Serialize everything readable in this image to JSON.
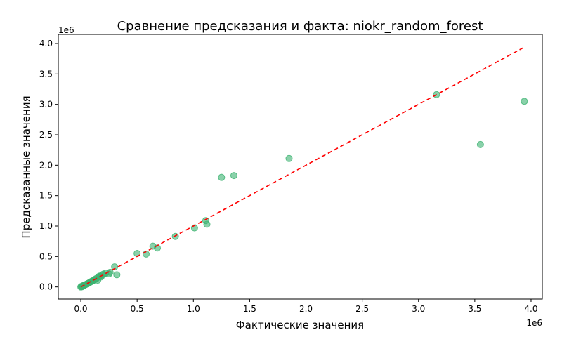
{
  "chart_data": {
    "type": "scatter",
    "title": "Сравнение предсказания и факта: niokr_random_forest",
    "xlabel": "Фактические значения",
    "ylabel": "Предсказанные значения",
    "x_offset_label": "1e6",
    "y_offset_label": "1e6",
    "xlim": [
      -200000,
      4100000
    ],
    "ylim": [
      -200000,
      4150000
    ],
    "x_ticks": [
      0,
      500000,
      1000000,
      1500000,
      2000000,
      2500000,
      3000000,
      3500000,
      4000000
    ],
    "x_tick_labels": [
      "0.0",
      "0.5",
      "1.0",
      "1.5",
      "2.0",
      "2.5",
      "3.0",
      "3.5",
      "4.0"
    ],
    "y_ticks": [
      0,
      500000,
      1000000,
      1500000,
      2000000,
      2500000,
      3000000,
      3500000,
      4000000
    ],
    "y_tick_labels": [
      "0.0",
      "0.5",
      "1.0",
      "1.5",
      "2.0",
      "2.5",
      "3.0",
      "3.5",
      "4.0"
    ],
    "grid": false,
    "point_color": "#3cb371",
    "point_opacity": 0.6,
    "reference_line": {
      "style": "dashed",
      "color": "#ff0000",
      "from": [
        0,
        0
      ],
      "to": [
        3950000,
        3950000
      ]
    },
    "points": [
      {
        "x": 0,
        "y": 0
      },
      {
        "x": 5000,
        "y": 8000
      },
      {
        "x": 10000,
        "y": 3000
      },
      {
        "x": 15000,
        "y": 12000
      },
      {
        "x": 20000,
        "y": 20000
      },
      {
        "x": 25000,
        "y": 18000
      },
      {
        "x": 30000,
        "y": 28000
      },
      {
        "x": 40000,
        "y": 35000
      },
      {
        "x": 50000,
        "y": 45000
      },
      {
        "x": 60000,
        "y": 55000
      },
      {
        "x": 70000,
        "y": 62000
      },
      {
        "x": 80000,
        "y": 75000
      },
      {
        "x": 90000,
        "y": 85000
      },
      {
        "x": 100000,
        "y": 95000
      },
      {
        "x": 110000,
        "y": 105000
      },
      {
        "x": 120000,
        "y": 115000
      },
      {
        "x": 130000,
        "y": 130000
      },
      {
        "x": 140000,
        "y": 140000
      },
      {
        "x": 150000,
        "y": 110000
      },
      {
        "x": 160000,
        "y": 170000
      },
      {
        "x": 170000,
        "y": 180000
      },
      {
        "x": 180000,
        "y": 165000
      },
      {
        "x": 190000,
        "y": 195000
      },
      {
        "x": 200000,
        "y": 210000
      },
      {
        "x": 220000,
        "y": 225000
      },
      {
        "x": 250000,
        "y": 215000
      },
      {
        "x": 260000,
        "y": 240000
      },
      {
        "x": 300000,
        "y": 330000
      },
      {
        "x": 320000,
        "y": 200000
      },
      {
        "x": 500000,
        "y": 550000
      },
      {
        "x": 580000,
        "y": 540000
      },
      {
        "x": 640000,
        "y": 670000
      },
      {
        "x": 680000,
        "y": 640000
      },
      {
        "x": 840000,
        "y": 830000
      },
      {
        "x": 1010000,
        "y": 970000
      },
      {
        "x": 1110000,
        "y": 1090000
      },
      {
        "x": 1120000,
        "y": 1030000
      },
      {
        "x": 1250000,
        "y": 1800000
      },
      {
        "x": 1360000,
        "y": 1830000
      },
      {
        "x": 1850000,
        "y": 2110000
      },
      {
        "x": 3160000,
        "y": 3160000
      },
      {
        "x": 3550000,
        "y": 2340000
      },
      {
        "x": 3940000,
        "y": 3050000
      }
    ]
  }
}
